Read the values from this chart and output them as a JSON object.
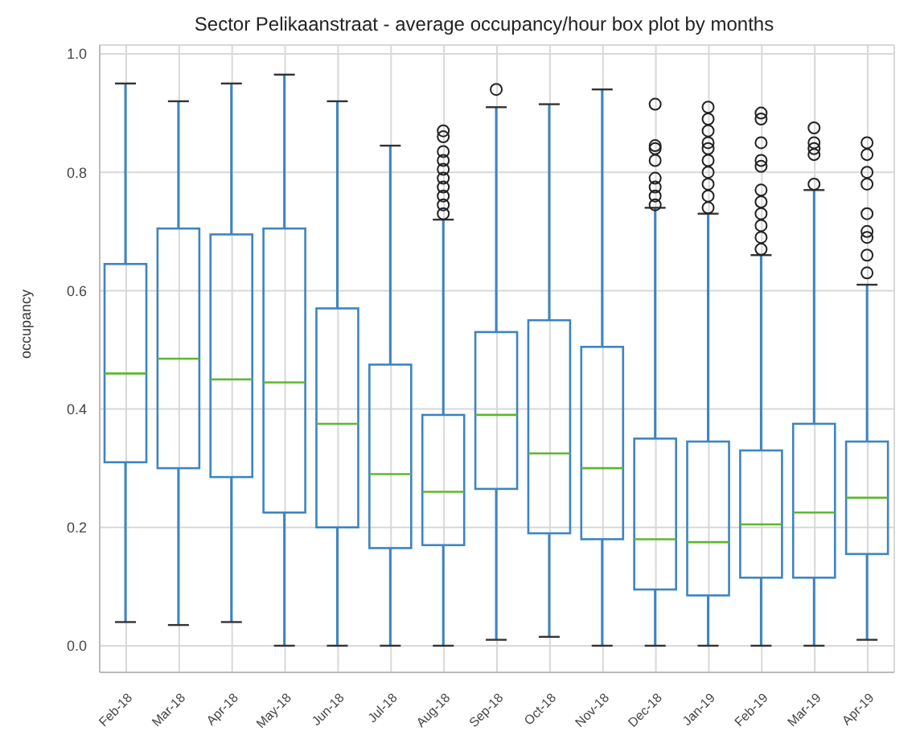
{
  "chart_data": {
    "type": "box",
    "title": "Sector Pelikaanstraat  - average occupancy/hour box plot by months",
    "ylabel": "occupancy",
    "categories": [
      "Feb-18",
      "Mar-18",
      "Apr-18",
      "May-18",
      "Jun-18",
      "Jul-18",
      "Aug-18",
      "Sep-18",
      "Oct-18",
      "Nov-18",
      "Dec-18",
      "Jan-19",
      "Feb-19",
      "Mar-19",
      "Apr-19"
    ],
    "ylim": [
      -0.045,
      1.015
    ],
    "yticks": [
      {
        "value": 0,
        "label": "0.0"
      },
      0.2,
      0.4,
      0.6,
      0.8,
      {
        "value": 1,
        "label": "1.0"
      }
    ],
    "grid": true,
    "series": [
      {
        "color": "#3c84c4",
        "boxes": [
          {
            "low": 0.04,
            "q1": 0.31,
            "median": 0.46,
            "q3": 0.645,
            "high": 0.95
          },
          {
            "low": 0.035,
            "q1": 0.3,
            "median": 0.485,
            "q3": 0.705,
            "high": 0.92
          },
          {
            "low": 0.04,
            "q1": 0.285,
            "median": 0.45,
            "q3": 0.695,
            "high": 0.95
          },
          {
            "low": 0,
            "q1": 0.225,
            "median": 0.445,
            "q3": 0.705,
            "high": 0.965
          },
          {
            "low": 0,
            "q1": 0.2,
            "median": 0.375,
            "q3": 0.57,
            "high": 0.92
          },
          {
            "low": 0,
            "q1": 0.165,
            "median": 0.29,
            "q3": 0.475,
            "high": 0.845
          },
          {
            "low": 0,
            "q1": 0.17,
            "median": 0.26,
            "q3": 0.39,
            "high": 0.72,
            "outliers": [
              0.73,
              0.745,
              0.76,
              0.775,
              0.79,
              0.805,
              0.82,
              0.835,
              0.86,
              0.87
            ]
          },
          {
            "low": 0.01,
            "q1": 0.265,
            "median": 0.39,
            "q3": 0.53,
            "high": 0.91,
            "outliers": [
              0.94
            ]
          },
          {
            "low": 0.015,
            "q1": 0.19,
            "median": 0.325,
            "q3": 0.55,
            "high": 0.915
          },
          {
            "low": 0,
            "q1": 0.18,
            "median": 0.3,
            "q3": 0.505,
            "high": 0.94
          },
          {
            "low": 0,
            "q1": 0.095,
            "median": 0.18,
            "q3": 0.35,
            "high": 0.74,
            "outliers": [
              0.745,
              0.76,
              0.775,
              0.79,
              0.82,
              0.84,
              0.845,
              0.915
            ]
          },
          {
            "low": 0,
            "q1": 0.085,
            "median": 0.175,
            "q3": 0.345,
            "high": 0.73,
            "outliers": [
              0.74,
              0.76,
              0.78,
              0.8,
              0.82,
              0.84,
              0.85,
              0.87,
              0.89,
              0.91
            ]
          },
          {
            "low": 0,
            "q1": 0.115,
            "median": 0.205,
            "q3": 0.33,
            "high": 0.66,
            "outliers": [
              0.67,
              0.69,
              0.71,
              0.73,
              0.75,
              0.77,
              0.81,
              0.82,
              0.85,
              0.89,
              0.9
            ]
          },
          {
            "low": 0,
            "q1": 0.115,
            "median": 0.225,
            "q3": 0.375,
            "high": 0.77,
            "outliers": [
              0.78,
              0.83,
              0.84,
              0.85,
              0.875
            ]
          },
          {
            "low": 0.01,
            "q1": 0.155,
            "median": 0.25,
            "q3": 0.345,
            "high": 0.61,
            "outliers": [
              0.63,
              0.66,
              0.69,
              0.7,
              0.73,
              0.78,
              0.8,
              0.83,
              0.85
            ]
          }
        ]
      }
    ]
  }
}
